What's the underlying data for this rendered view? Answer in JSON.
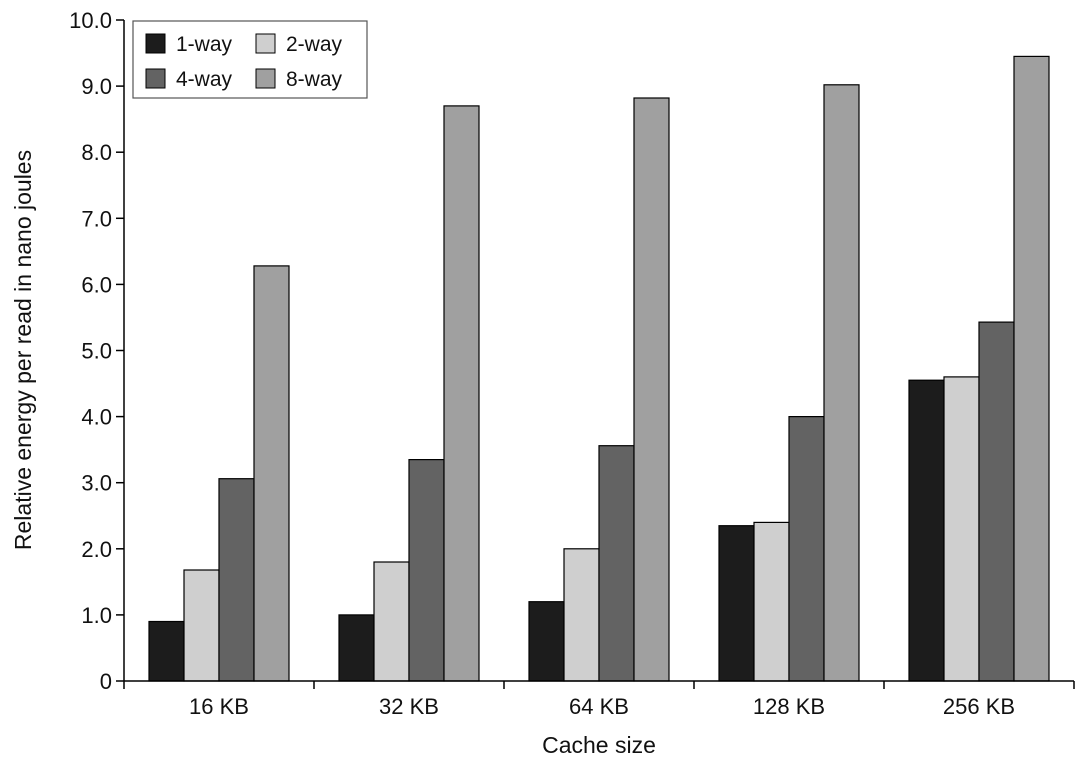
{
  "chart_data": {
    "type": "bar",
    "title": "",
    "xlabel": "Cache size",
    "ylabel": "Relative energy per read in nano joules",
    "ylim": [
      0,
      10
    ],
    "yticks": [
      "0",
      "1.0",
      "2.0",
      "3.0",
      "4.0",
      "5.0",
      "6.0",
      "7.0",
      "8.0",
      "9.0",
      "10.0"
    ],
    "grid": false,
    "legend_position": "top-left",
    "categories": [
      "16 KB",
      "32 KB",
      "64 KB",
      "128 KB",
      "256 KB"
    ],
    "series": [
      {
        "name": "1-way",
        "color": "#1c1c1c",
        "values": [
          0.9,
          1.0,
          1.2,
          2.35,
          4.55
        ]
      },
      {
        "name": "2-way",
        "color": "#cfcfcf",
        "values": [
          1.68,
          1.8,
          2.0,
          2.4,
          4.6
        ]
      },
      {
        "name": "4-way",
        "color": "#636363",
        "values": [
          3.06,
          3.35,
          3.56,
          4.0,
          5.43
        ]
      },
      {
        "name": "8-way",
        "color": "#a0a0a0",
        "values": [
          6.28,
          8.7,
          8.82,
          9.02,
          9.45
        ]
      }
    ],
    "legend_order": [
      0,
      1,
      2,
      3
    ]
  }
}
